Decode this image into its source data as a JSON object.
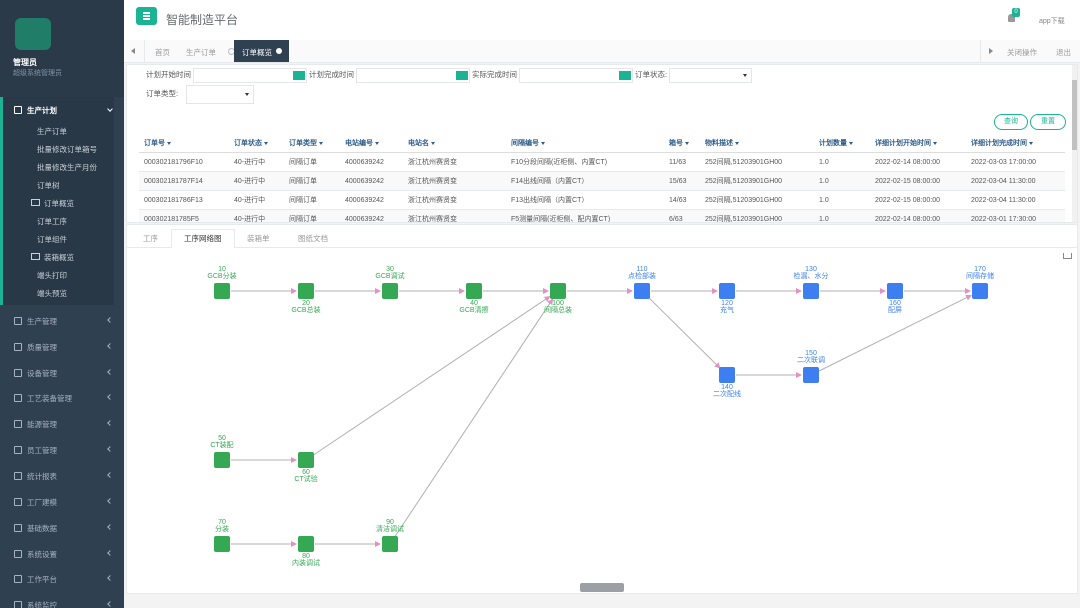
{
  "sidebar": {
    "user": "管理员",
    "role": "超级系统管理员",
    "menu": [
      {
        "label": "生产计划",
        "children": [
          "生产订单",
          "批量修改订单箱号",
          "批量修改生产月份",
          "订单树",
          "订单概览",
          "订单工序",
          "订单组件",
          "装箱概览",
          "端头打印",
          "端头预览"
        ]
      },
      {
        "label": "生产管理"
      },
      {
        "label": "质量管理"
      },
      {
        "label": "设备管理"
      },
      {
        "label": "工艺装备管理"
      },
      {
        "label": "能源管理"
      },
      {
        "label": "员工管理"
      },
      {
        "label": "统计报表"
      },
      {
        "label": "工厂建模"
      },
      {
        "label": "基础数据"
      },
      {
        "label": "系统设置"
      },
      {
        "label": "工作平台"
      },
      {
        "label": "系统监控"
      }
    ]
  },
  "header": {
    "title": "智能制造平台",
    "badge": "0",
    "download": "app下载"
  },
  "tabs": {
    "items": [
      "首页",
      "生产订单",
      "订单概览"
    ],
    "close_ops": "关闭操作",
    "logout": "退出"
  },
  "filters": {
    "labels": [
      "计划开始时间",
      "计划完成时间",
      "实际完成时间",
      "订单状态:",
      "订单类型:"
    ]
  },
  "buttons": [
    "查询",
    "重置"
  ],
  "table": {
    "columns": [
      "订单号",
      "订单状态",
      "订单类型",
      "电站编号",
      "电站名",
      "间隔编号",
      "箱号",
      "物料描述",
      "计划数量",
      "详细计划开始时间",
      "详细计划完成时间"
    ],
    "rows": [
      [
        "000302181796F10",
        "40-进行中",
        "间隔订单",
        "4000639242",
        "浙江杭州赛贤变",
        "F10分段间隔(近柜侧、内置CT)",
        "11/63",
        "252间隔,51203901GH00",
        "1.0",
        "2022-02-14 08:00:00",
        "2022-03-03 17:00:00"
      ],
      [
        "000302181787F14",
        "40-进行中",
        "间隔订单",
        "4000639242",
        "浙江杭州赛贤变",
        "F14出线间隔（内置CT）",
        "15/63",
        "252间隔,51203901GH00",
        "1.0",
        "2022-02-15 08:00:00",
        "2022-03-04 11:30:00"
      ],
      [
        "000302181786F13",
        "40-进行中",
        "间隔订单",
        "4000639242",
        "浙江杭州赛贤变",
        "F13出线间隔（内置CT）",
        "14/63",
        "252间隔,51203901GH00",
        "1.0",
        "2022-02-15 08:00:00",
        "2022-03-04 11:30:00"
      ],
      [
        "000302181785F5",
        "40-进行中",
        "间隔订单",
        "4000639242",
        "浙江杭州赛贤变",
        "F5测量间隔(近柜侧、配内置CT)",
        "6/63",
        "252间隔,51203901GH00",
        "1.0",
        "2022-02-14 08:00:00",
        "2022-03-01 17:30:00"
      ]
    ]
  },
  "detail_tabs": [
    "工序",
    "工序网络图",
    "装箱单",
    "图纸文档"
  ],
  "network": {
    "nodes": [
      {
        "code": "10",
        "label": "GCB分装",
        "color": "#34a853"
      },
      {
        "code": "20",
        "label": "GCB总装",
        "color": "#34a853"
      },
      {
        "code": "30",
        "label": "GCB调试",
        "color": "#34a853"
      },
      {
        "code": "40",
        "label": "GCB清擦",
        "color": "#34a853"
      },
      {
        "code": "100",
        "label": "间隔总装",
        "color": "#34a853"
      },
      {
        "code": "110",
        "label": "点检部装",
        "color": "#3d7ff0"
      },
      {
        "code": "120",
        "label": "充气",
        "color": "#3d7ff0"
      },
      {
        "code": "130",
        "label": "检漏、水分",
        "color": "#3d7ff0"
      },
      {
        "code": "160",
        "label": "配屏",
        "color": "#3d7ff0"
      },
      {
        "code": "170",
        "label": "间隔存储",
        "color": "#3d7ff0"
      },
      {
        "code": "140",
        "label": "二次配线",
        "color": "#3d7ff0"
      },
      {
        "code": "150",
        "label": "二次联调",
        "color": "#3d7ff0"
      },
      {
        "code": "50",
        "label": "CT装配",
        "color": "#34a853"
      },
      {
        "code": "60",
        "label": "CT试验",
        "color": "#34a853"
      },
      {
        "code": "70",
        "label": "分装",
        "color": "#34a853"
      },
      {
        "code": "80",
        "label": "内装调试",
        "color": "#34a853"
      },
      {
        "code": "90",
        "label": "清洁调试",
        "color": "#34a853"
      }
    ]
  }
}
